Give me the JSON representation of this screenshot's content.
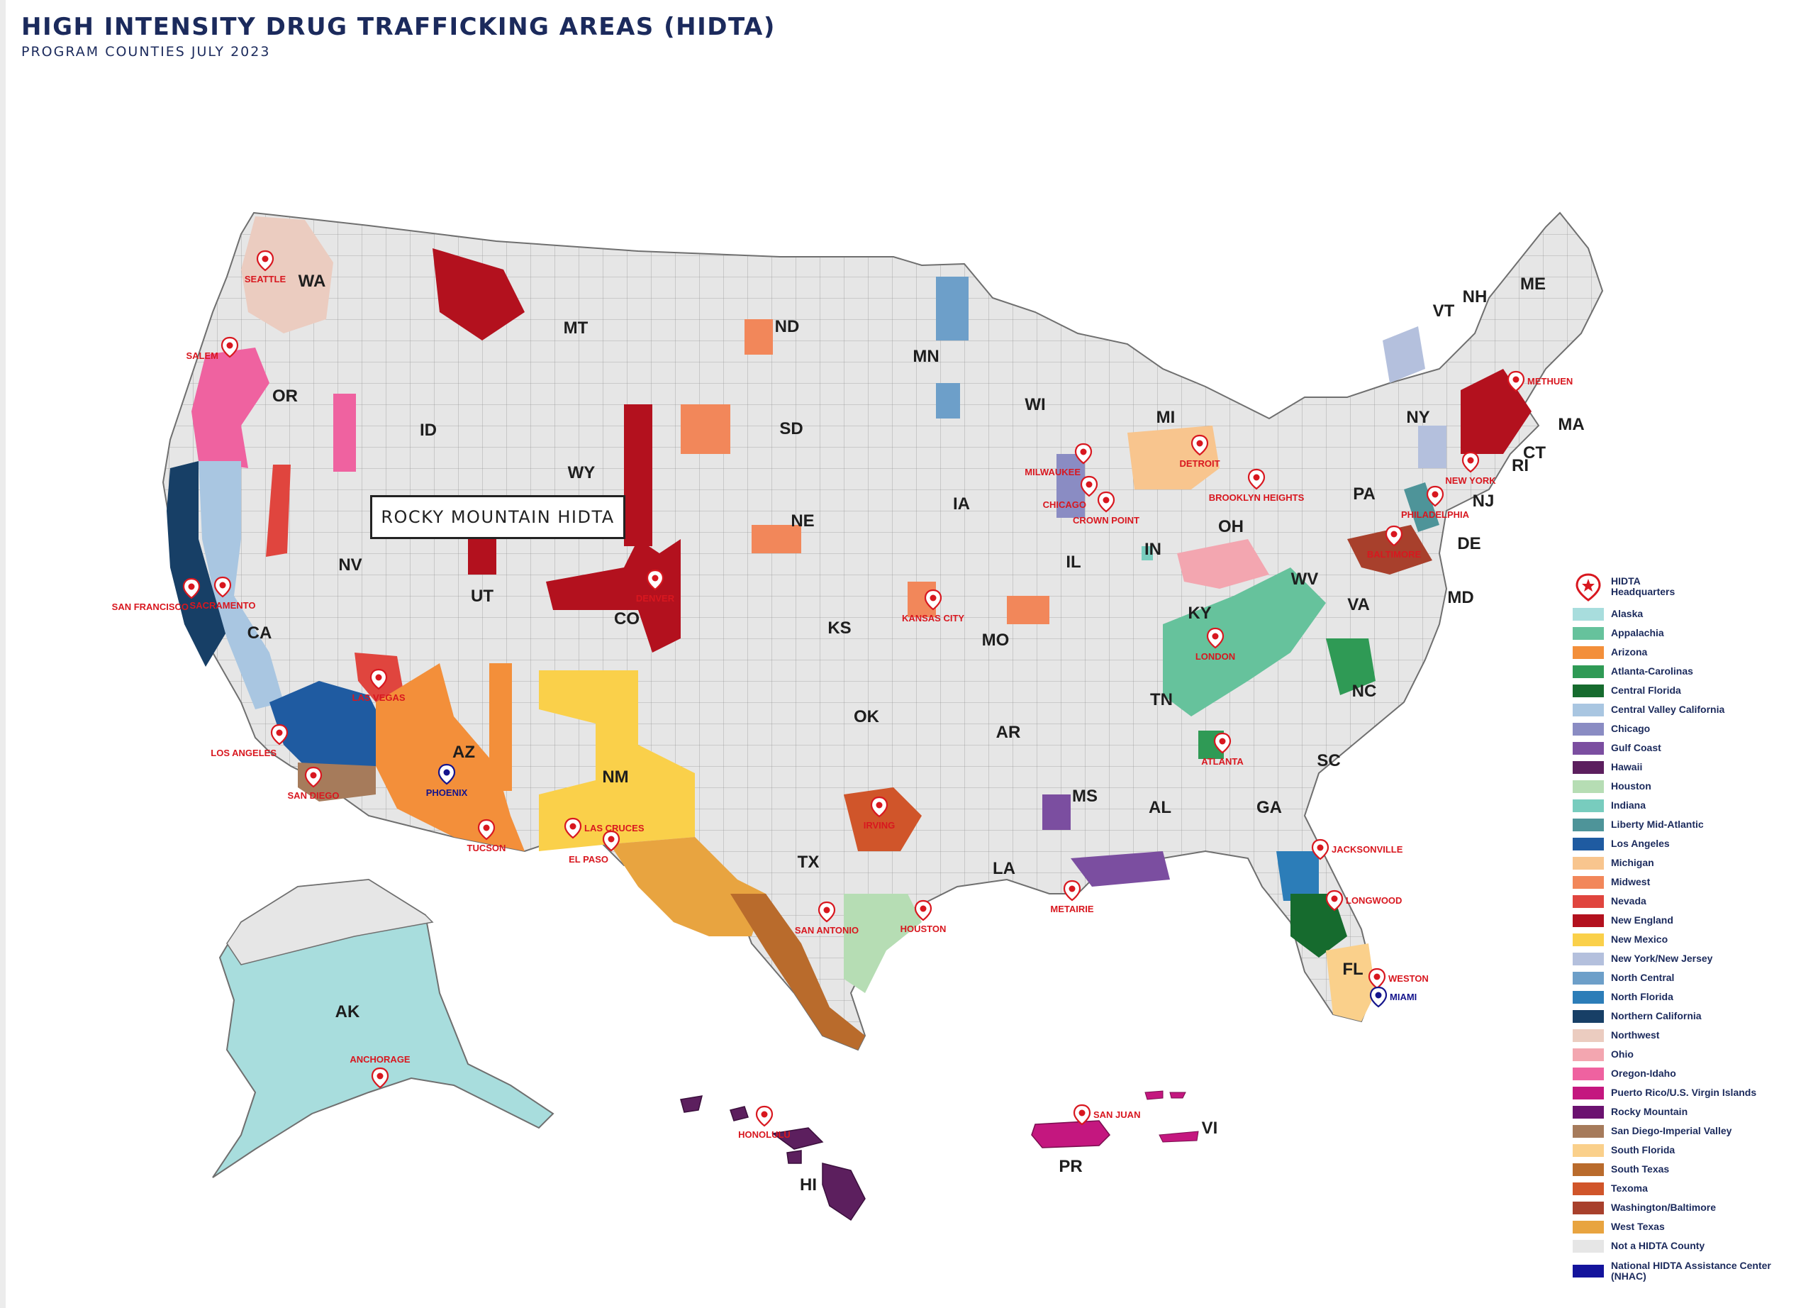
{
  "header": {
    "title": "HIGH INTENSITY DRUG TRAFFICKING AREAS (HIDTA)",
    "subtitle": "PROGRAM COUNTIES JULY 2023"
  },
  "callout": {
    "label": "ROCKY MOUNTAIN HIDTA"
  },
  "colors": {
    "land": "#e6e6e6",
    "border": "#8a8a8a",
    "hq_red": "#d8171f",
    "hq_blue": "#14148c"
  },
  "state_labels": [
    "WA",
    "OR",
    "ID",
    "MT",
    "WY",
    "NV",
    "UT",
    "CO",
    "CA",
    "AZ",
    "NM",
    "ND",
    "SD",
    "NE",
    "KS",
    "OK",
    "TX",
    "MN",
    "IA",
    "MO",
    "AR",
    "LA",
    "WI",
    "IL",
    "MS",
    "AL",
    "GA",
    "MI",
    "IN",
    "OH",
    "KY",
    "TN",
    "WV",
    "VA",
    "NC",
    "SC",
    "FL",
    "PA",
    "NY",
    "VT",
    "NH",
    "ME",
    "MA",
    "CT",
    "RI",
    "NJ",
    "DE",
    "MD",
    "AK",
    "HI",
    "PR",
    "VI"
  ],
  "hq_cities": [
    "SEATTLE",
    "SALEM",
    "SAN FRANCISCO",
    "SACRAMENTO",
    "LAS VEGAS",
    "LOS ANGELES",
    "SAN DIEGO",
    "PHOENIX",
    "TUCSON",
    "LAS CRUCES",
    "EL PASO",
    "DENVER",
    "KANSAS CITY",
    "IRVING",
    "SAN ANTONIO",
    "HOUSTON",
    "METAIRIE",
    "MILWAUKEE",
    "CHICAGO",
    "CROWN POINT",
    "DETROIT",
    "BROOKLYN HEIGHTS",
    "LONDON",
    "ATLANTA",
    "JACKSONVILLE",
    "LONGWOOD",
    "WESTON",
    "MIAMI",
    "BALTIMORE",
    "PHILADELPHIA",
    "NEW YORK",
    "METHUEN",
    "ANCHORAGE",
    "HONOLULU",
    "SAN JUAN"
  ],
  "legend": {
    "hq_label": "HIDTA Headquarters",
    "items": [
      {
        "label": "Alaska",
        "color": "#a8dddd"
      },
      {
        "label": "Appalachia",
        "color": "#66c29c"
      },
      {
        "label": "Arizona",
        "color": "#f38f3a"
      },
      {
        "label": "Atlanta-Carolinas",
        "color": "#2f9a55"
      },
      {
        "label": "Central Florida",
        "color": "#166b2e"
      },
      {
        "label": "Central Valley California",
        "color": "#a9c6e1"
      },
      {
        "label": "Chicago",
        "color": "#8a8cc3"
      },
      {
        "label": "Gulf Coast",
        "color": "#7b4ea0"
      },
      {
        "label": "Hawaii",
        "color": "#5c1f5e"
      },
      {
        "label": "Houston",
        "color": "#b6ddb4"
      },
      {
        "label": "Indiana",
        "color": "#78ccbe"
      },
      {
        "label": "Liberty Mid-Atlantic",
        "color": "#4e9499"
      },
      {
        "label": "Los Angeles",
        "color": "#1f5ba1"
      },
      {
        "label": "Michigan",
        "color": "#f8c58e"
      },
      {
        "label": "Midwest",
        "color": "#f2875a"
      },
      {
        "label": "Nevada",
        "color": "#e0453e"
      },
      {
        "label": "New England",
        "color": "#b3111e"
      },
      {
        "label": "New Mexico",
        "color": "#fad04a"
      },
      {
        "label": "New York/New Jersey",
        "color": "#b4c0dd"
      },
      {
        "label": "North Central",
        "color": "#6d9fc9"
      },
      {
        "label": "North Florida",
        "color": "#2c7db8"
      },
      {
        "label": "Northern California",
        "color": "#173f66"
      },
      {
        "label": "Northwest",
        "color": "#ebccc0"
      },
      {
        "label": "Ohio",
        "color": "#f3a6b0"
      },
      {
        "label": "Oregon-Idaho",
        "color": "#ef62a0"
      },
      {
        "label": "Puerto Rico/U.S. Virgin Islands",
        "color": "#c4177f"
      },
      {
        "label": "Rocky Mountain",
        "color": "#6b1270"
      },
      {
        "label": "San Diego-Imperial Valley",
        "color": "#a67b5b"
      },
      {
        "label": "South Florida",
        "color": "#fad08b"
      },
      {
        "label": "South Texas",
        "color": "#b96b2c"
      },
      {
        "label": "Texoma",
        "color": "#d0552a"
      },
      {
        "label": "Washington/Baltimore",
        "color": "#a8402c"
      },
      {
        "label": "West Texas",
        "color": "#e8a440"
      },
      {
        "label": "Not a HIDTA County",
        "color": "#e6e6e6"
      },
      {
        "label": "National HIDTA Assistance Center (NHAC)",
        "color": "#14149c"
      }
    ]
  }
}
